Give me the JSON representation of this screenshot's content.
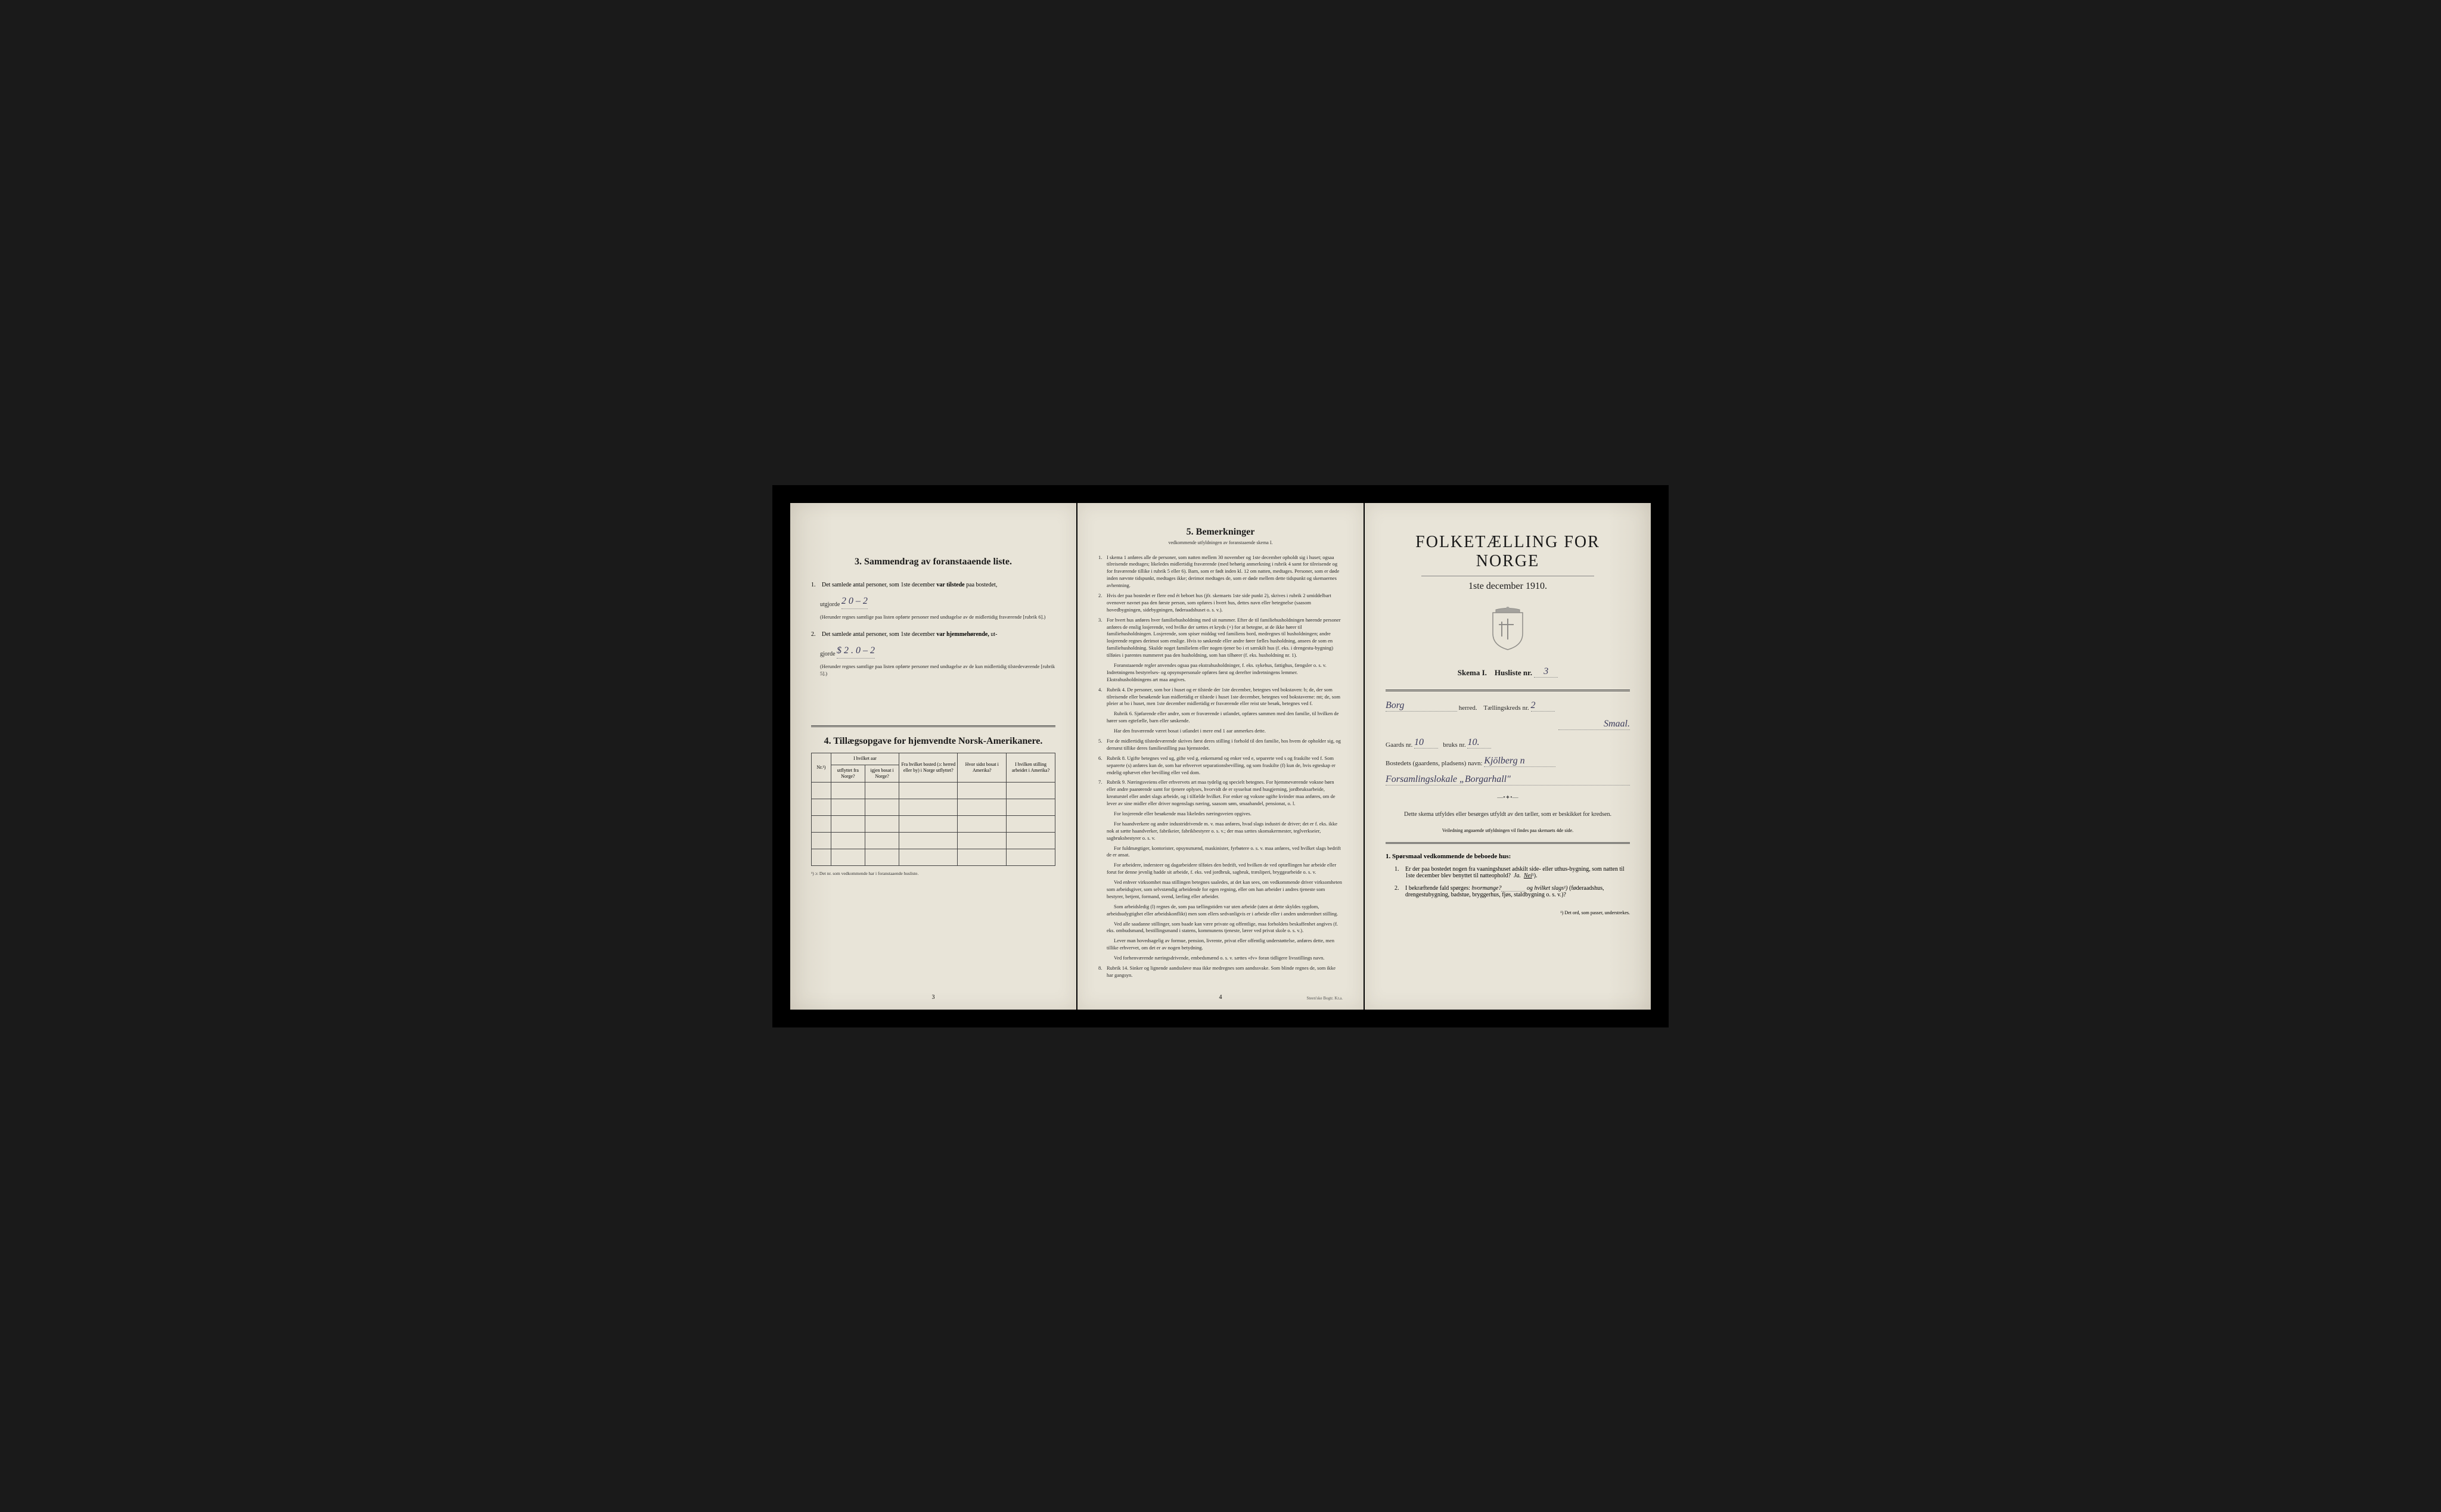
{
  "colors": {
    "paper": "#e8e4d8",
    "paper_edge": "#ddd8cb",
    "background": "#1a1a1a",
    "text": "#2a2a2a",
    "handwriting": "#3a3a5a",
    "border": "#444444"
  },
  "page1": {
    "section3": {
      "number": "3.",
      "title": "Sammendrag av foranstaaende liste.",
      "item1": {
        "num": "1.",
        "text_before": "Det samlede antal personer, som 1ste december",
        "bold_text": "var tilstede",
        "text_after": "paa bostedet,",
        "utgjorde": "utgjorde",
        "value": "2 0 – 2",
        "note": "(Herunder regnes samtlige paa listen opførte personer med undtagelse av de midlertidig fraværende [rubrik 6].)"
      },
      "item2": {
        "num": "2.",
        "text_before": "Det samlede antal personer, som 1ste december",
        "bold_text": "var hjemmehørende,",
        "text_after": "ut-",
        "gjorde": "gjorde",
        "value": "$ 2 . 0 – 2",
        "note": "(Herunder regnes samtlige paa listen opførte personer med undtagelse av de kun midlertidig tilstedeværende [rubrik 5].)"
      }
    },
    "section4": {
      "number": "4.",
      "title": "Tillægsopgave for hjemvendte Norsk-Amerikanere.",
      "table": {
        "columns": [
          "Nr.¹)",
          "I hvilket aar utflyttet fra Norge?",
          "igjen bosat i Norge?",
          "Fra hvilket bosted (ɔ: herred eller by) i Norge utflyttet?",
          "Hvor sidst bosat i Amerika?",
          "I hvilken stilling arbeidet i Amerika?"
        ],
        "row_count": 5
      },
      "footnote": "¹) ɔ: Det nr. som vedkommende har i foranstaaende husliste."
    },
    "page_number": "3"
  },
  "page2": {
    "section5": {
      "number": "5.",
      "title": "Bemerkninger",
      "subtitle": "vedkommende utfyldningen av foranstaaende skema I."
    },
    "items": [
      {
        "num": "1.",
        "text": "I skema 1 anføres alle de personer, som natten mellem 30 november og 1ste december opholdt sig i huset; ogsaa tilreisende medtages; likeledes midlertidig fraværende (med behørig anmerkning i rubrik 4 samt for tilreisende og for fraværende tillike i rubrik 5 eller 6). Barn, som er født inden kl. 12 om natten, medtages. Personer, som er døde inden nævnte tidspunkt, medtages ikke; derimot medtages de, som er døde mellem dette tidspunkt og skemaernes avhentning."
      },
      {
        "num": "2.",
        "text": "Hvis der paa bostedet er flere end ét beboet hus (jfr. skemaets 1ste side punkt 2), skrives i rubrik 2 umiddelbart ovenover navnet paa den første person, som opføres i hvert hus, dettes navn eller betegnelse (saasom hovedbygningen, sidebygningen, føderaadshuset o. s. v.)."
      },
      {
        "num": "3.",
        "text": "For hvert hus anføres hver familiehusholdning med sit nummer. Efter de til familiehusholdningen hørende personer anføres de enslig losjerende, ved hvilke der sættes et kryds (×) for at betegne, at de ikke hører til familiehusholdningen. Losjerende, som spiser middag ved familiens bord, medregnes til husholdningen; andre losjerende regnes derimot som enslige. Hvis to søskende eller andre fører fælles husholdning, ansees de som en familiehusholdning. Skulde noget familielem eller nogen tjener bo i et særskilt hus (f. eks. i drengestu-bygning) tilføies i parentes nummeret paa den husholdning, som han tilhører (f. eks. husholdning nr. 1)."
      },
      {
        "num": "",
        "text": "Foranstaaende regler anvendes ogsaa paa ekstrahusholdninger, f. eks. sykehus, fattighus, fængsler o. s. v. Indretningens bestyrelses- og opsynspersonale opføres først og derefter indretningens lemmer. Ekstrahusholdningens art maa angives.",
        "indent": true
      },
      {
        "num": "4.",
        "text": "Rubrik 4. De personer, som bor i huset og er tilstede der 1ste december, betegnes ved bokstaven: b; de, der som tilreisende eller besøkende kun midlertidig er tilstede i huset 1ste december, betegnes ved bokstaverne: mt; de, som pleier at bo i huset, men 1ste december midlertidig er fraværende eller reist ute besøk, betegnes ved f."
      },
      {
        "num": "",
        "text": "Rubrik 6. Sjøfarende eller andre, som er fraværende i utlandet, opføres sammen med den familie, til hvilken de hører som egtefælle, barn eller søskende.",
        "indent": true
      },
      {
        "num": "",
        "text": "Har den fraværende været bosat i utlandet i mere end 1 aar anmerkes dette.",
        "indent": true
      },
      {
        "num": "5.",
        "text": "For de midlertidig tilstedeværende skrives først deres stilling i forhold til den familie, hos hvem de opholder sig, og dernæst tillike deres familiestilling paa hjemstedet."
      },
      {
        "num": "6.",
        "text": "Rubrik 8. Ugifte betegnes ved ug, gifte ved g, enkemænd og enker ved e, separerte ved s og fraskilte ved f. Som separerte (s) anføres kun de, som har erhvervet separationsbevilling, og som fraskilte (f) kun de, hvis egteskap er endelig ophævet efter bevilling eller ved dom."
      },
      {
        "num": "7.",
        "text": "Rubrik 9. Næringsveiens eller erhvervets art maa tydelig og specielt betegnes. For hjemmeværende voksne børn eller andre paarørende samt for tjenere oplyses, hvorvidt de er sysselsat med husgjerning, jordbruksarbeide, kreaturstel eller andet slags arbeide, og i tilfælde hvilket. For enker og voksne ugifte kvinder maa anføres, om de lever av sine midler eller driver nogenslags næring, saasom søm, smaahandel, pensionat, o. l."
      },
      {
        "num": "",
        "text": "For losjerende eller besøkende maa likeledes næringsveien opgives.",
        "indent": true
      },
      {
        "num": "",
        "text": "For haandverkere og andre industridrivende m. v. maa anføres, hvad slags industri de driver; det er f. eks. ikke nok at sætte haandverker, fabrikeier, fabrikbestyrer o. s. v.; der maa sættes skomakermester, teglverkseier, sagbruksbestyrer o. s. v.",
        "indent": true
      },
      {
        "num": "",
        "text": "For fuldmægtiger, kontorister, opsynsmænd, maskinister, fyrbøtere o. s. v. maa anføres, ved hvilket slags bedrift de er ansat.",
        "indent": true
      },
      {
        "num": "",
        "text": "For arbeidere, indersteer og dagarbeidere tilføies den bedrift, ved hvilken de ved optællingen har arbeide eller forut for denne jevnlig hadde sit arbeide, f. eks. ved jordbruk, sagbruk, træsliperi, bryggearbeide o. s. v.",
        "indent": true
      },
      {
        "num": "",
        "text": "Ved enhver virksomhet maa stillingen betegnes saaledes, at det kan sees, om vedkommende driver virksomheten som arbeidsgiver, som selvstændig arbeidende for egen regning, eller om han arbeider i andres tjeneste som bestyrer, betjent, formand, svend, lærling eller arbeider.",
        "indent": true
      },
      {
        "num": "",
        "text": "Som arbeidsledig (l) regnes de, som paa tællingstiden var uten arbeide (uten at dette skyldes sygdom, arbeidsudygtighet eller arbeidskonflikt) men som ellers sedvanligvis er i arbeide eller i anden underordnet stilling.",
        "indent": true
      },
      {
        "num": "",
        "text": "Ved alle saadanne stillinger, som baade kan være private og offentlige, maa forholdets beskaffenhet angives (f. eks. ombudsmand, bestillingsmand i statens, kommunens tjeneste, lærer ved privat skole o. s. v.).",
        "indent": true
      },
      {
        "num": "",
        "text": "Lever man hovedsagelig av formue, pension, livrente, privat eller offentlig understøttelse, anføres dette, men tillike erhvervet, om det er av nogen betydning.",
        "indent": true
      },
      {
        "num": "",
        "text": "Ved forhenværende næringsdrivende, embedsmænd o. s. v. sættes «fv» foran tidligere livsstillings navn.",
        "indent": true
      },
      {
        "num": "8.",
        "text": "Rubrik 14. Sinker og lignende aandssløve maa ikke medregnes som aandssvake. Som blinde regnes de, som ikke har gangsyn."
      }
    ],
    "page_number": "4",
    "publisher": "Steen'ske Bogtr. Kr.a."
  },
  "page3": {
    "main_title": "FOLKETÆLLING FOR NORGE",
    "main_subtitle": "1ste december 1910.",
    "schema_label": "Skema I.",
    "husliste_label": "Husliste nr.",
    "husliste_value": "3",
    "herred_value": "Borg",
    "herred_label": "herred.",
    "tellingskreds_label": "Tællingskreds nr.",
    "tellingskreds_value": "2",
    "smaal_value": "Smaal.",
    "gaards_label": "Gaards nr.",
    "gaards_value": "10",
    "bruks_label": "bruks nr.",
    "bruks_value": "10.",
    "bosted_label": "Bostedets (gaardens, pladsens) navn:",
    "bosted_value1": "Kjölberg n",
    "bosted_value2": "Forsamlingslokale „Borgarhall\"",
    "instructions_text": "Dette skema utfyldes eller besørges utfyldt av den tæller, som er beskikket for kredsen.",
    "instructions_note": "Veiledning angaaende utfyldningen vil findes paa skemaets 4de side.",
    "questions": {
      "header_num": "1.",
      "header_text": "Spørsmaal vedkommende de beboede hus:",
      "q1": {
        "num": "1.",
        "text": "Er der paa bostedet nogen fra vaaningshuset adskilt side- eller uthus-bygning, som natten til 1ste december blev benyttet til natteophold?",
        "answer_ja": "Ja.",
        "answer_nei": "Nei",
        "footnote_marker": "¹)."
      },
      "q2": {
        "num": "2.",
        "text_start": "I bekræftende fald spørges:",
        "hvormange": "hvormange?",
        "og": "og",
        "hvilket": "hvilket slags¹)",
        "text_end": "(føderaadshus, drengestubygning, badstue, bryggerhus, fjøs, staldbygning o. s. v.)?"
      }
    },
    "footnote": "¹) Det ord, som passer, understrekes."
  }
}
